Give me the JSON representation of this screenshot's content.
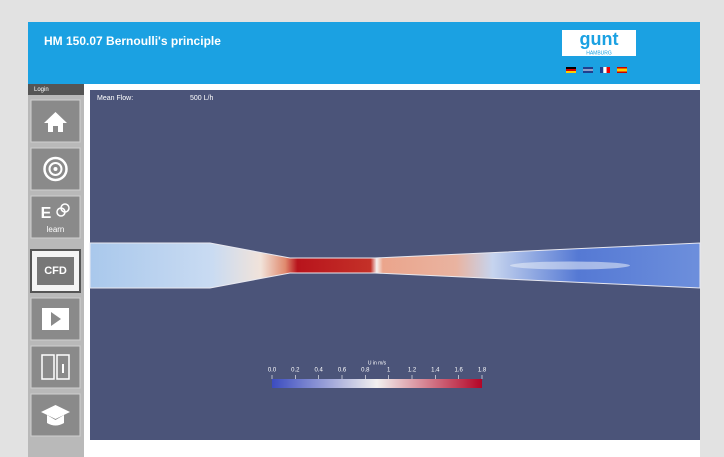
{
  "header": {
    "title": "HM 150.07 Bernoulli's principle",
    "logo": "gunt",
    "logo_sub": "HAMBURG"
  },
  "sidebar": {
    "login": "Login",
    "elearn": "E",
    "elearn_sub": "learn",
    "cfd": "CFD"
  },
  "view": {
    "mean_flow_label": "Mean Flow:",
    "mean_flow_value": "500 L/h",
    "colorbar": {
      "title": "U in m/s",
      "ticks": [
        "0.0",
        "0.2",
        "0.4",
        "0.6",
        "0.8",
        "1",
        "1.2",
        "1.4",
        "1.6",
        "1.8"
      ]
    }
  }
}
